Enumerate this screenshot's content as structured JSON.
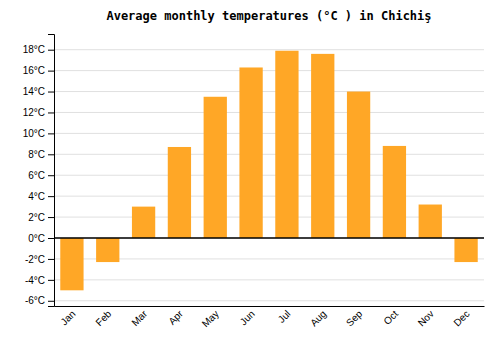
{
  "chart_data": {
    "type": "bar",
    "title": "Average monthly temperatures (°C ) in Chichiş",
    "categories": [
      "Jan",
      "Feb",
      "Mar",
      "Apr",
      "May",
      "Jun",
      "Jul",
      "Aug",
      "Sep",
      "Oct",
      "Nov",
      "Dec"
    ],
    "values": [
      -5,
      -2.3,
      3,
      8.7,
      13.5,
      16.3,
      17.9,
      17.6,
      14,
      8.8,
      3.2,
      -2.3
    ],
    "color": "#FFA726",
    "ylim": [
      -6.5,
      19.5
    ],
    "yticks": [
      {
        "value": -6,
        "label": "-6°C"
      },
      {
        "value": -4,
        "label": "-4°C"
      },
      {
        "value": -2,
        "label": "-2°C"
      },
      {
        "value": 0,
        "label": "0°C"
      },
      {
        "value": 2,
        "label": "2°C"
      },
      {
        "value": 4,
        "label": "4°C"
      },
      {
        "value": 6,
        "label": "6°C"
      },
      {
        "value": 8,
        "label": "8°C"
      },
      {
        "value": 10,
        "label": "10°C"
      },
      {
        "value": 12,
        "label": "12°C"
      },
      {
        "value": 14,
        "label": "14°C"
      },
      {
        "value": 16,
        "label": "16°C"
      },
      {
        "value": 18,
        "label": "18°C"
      }
    ],
    "grid": true
  }
}
